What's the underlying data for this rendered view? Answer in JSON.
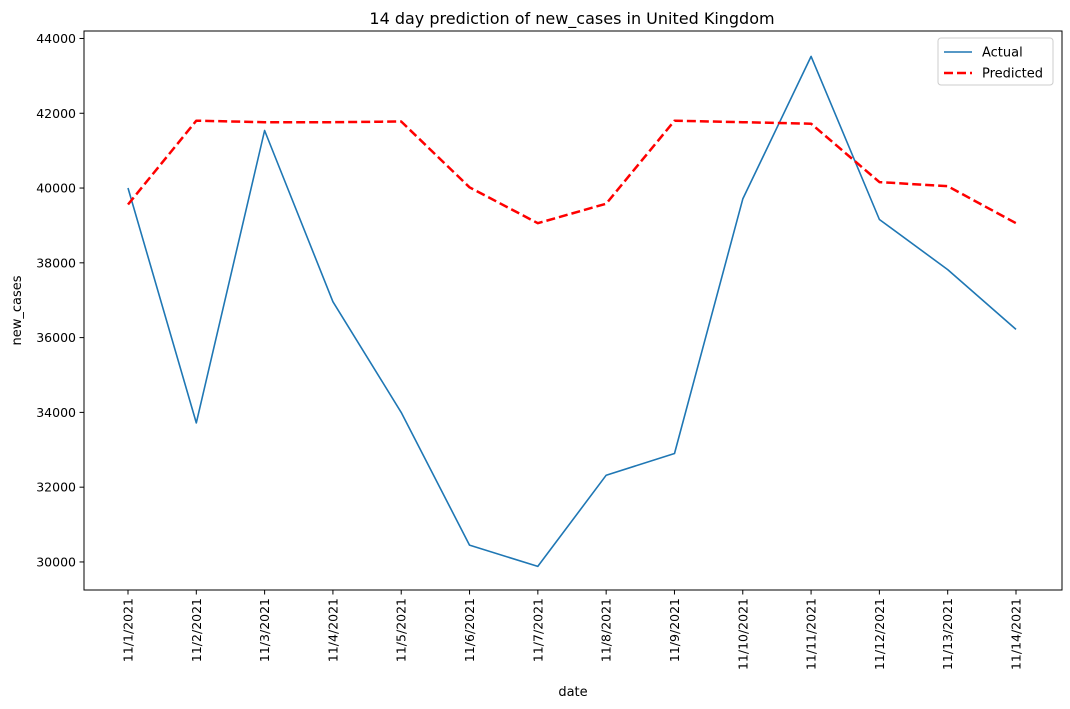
{
  "chart_data": {
    "type": "line",
    "title": "14 day prediction of new_cases in United Kingdom",
    "xlabel": "date",
    "ylabel": "new_cases",
    "categories": [
      "11/1/2021",
      "11/2/2021",
      "11/3/2021",
      "11/4/2021",
      "11/5/2021",
      "11/6/2021",
      "11/7/2021",
      "11/8/2021",
      "11/9/2021",
      "11/10/2021",
      "11/11/2021",
      "11/12/2021",
      "11/13/2021",
      "11/14/2021"
    ],
    "ylim": [
      29250,
      44200
    ],
    "yticks": [
      30000,
      32000,
      34000,
      36000,
      38000,
      40000,
      42000,
      44000
    ],
    "grid": false,
    "legend_position": "top-right",
    "series": [
      {
        "name": "Actual",
        "style": "solid",
        "color": "#1f77b4",
        "values": [
          40000,
          33720,
          41540,
          36960,
          34000,
          30450,
          29880,
          32320,
          32900,
          39710,
          43520,
          39160,
          37820,
          36220
        ]
      },
      {
        "name": "Predicted",
        "style": "dashed",
        "color": "#ff0000",
        "values": [
          39560,
          41800,
          41760,
          41760,
          41780,
          40020,
          39060,
          39580,
          41800,
          41760,
          41720,
          40160,
          40050,
          39060
        ]
      }
    ]
  }
}
